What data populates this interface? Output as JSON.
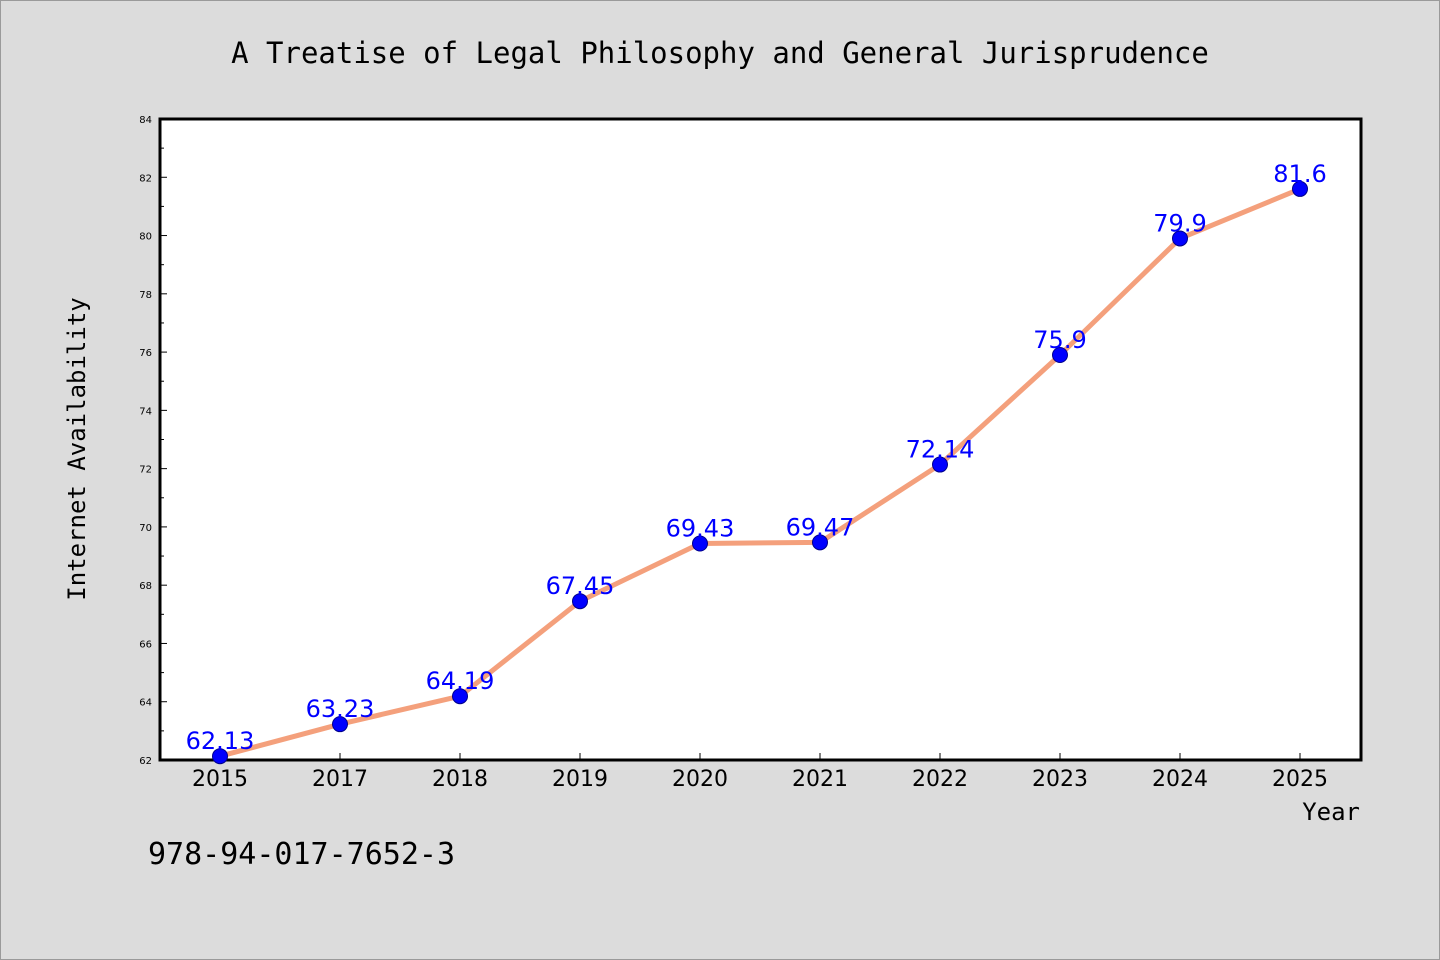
{
  "chart_data": {
    "type": "line",
    "title": "A Treatise of Legal Philosophy and General Jurisprudence",
    "xlabel": "Year",
    "ylabel": "Internet Availability",
    "categories": [
      "2015",
      "2017",
      "2018",
      "2019",
      "2020",
      "2021",
      "2022",
      "2023",
      "2024",
      "2025"
    ],
    "series": [
      {
        "values": [
          62.13,
          63.23,
          64.19,
          67.45,
          69.43,
          69.47,
          72.14,
          75.9,
          79.9,
          81.6
        ],
        "labels": [
          "62.13",
          "63.23",
          "64.19",
          "67.45",
          "69.43",
          "69.47",
          "72.14",
          "75.9",
          "79.9",
          "81.6"
        ],
        "line_color": "#f4a07c",
        "marker_color": "#0000ff"
      }
    ],
    "ylim": [
      62,
      84
    ],
    "yticks": [
      "62",
      "64",
      "66",
      "68",
      "70",
      "72",
      "74",
      "76",
      "78",
      "80",
      "82",
      "84"
    ],
    "grid": false,
    "legend": "none",
    "background": "#dcdcdc",
    "plot_background": "#ffffff"
  },
  "footer": {
    "isbn": "978-94-017-7652-3"
  }
}
